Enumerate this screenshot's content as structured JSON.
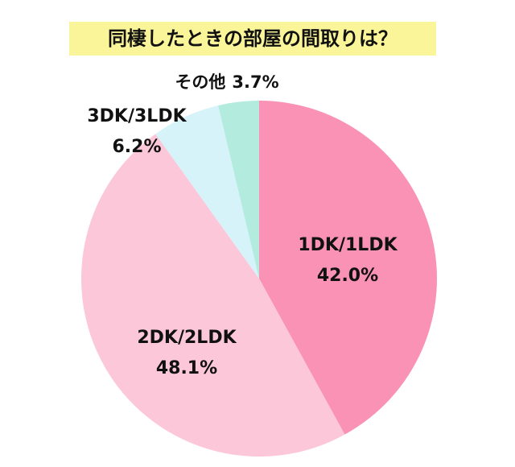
{
  "chart_data": {
    "type": "pie",
    "title": "同棲したときの部屋の間取りは？",
    "categories": [
      "1DK/1LDK",
      "2DK/2LDK",
      "3DK/3LDK",
      "その他"
    ],
    "values": [
      42.0,
      48.1,
      6.2,
      3.7
    ],
    "value_labels": [
      "42.0%",
      "48.1%",
      "6.2%",
      "3.7%"
    ],
    "colors": [
      "#f992b5",
      "#fcc7d9",
      "#d6f3fa",
      "#b3ebdf"
    ]
  }
}
